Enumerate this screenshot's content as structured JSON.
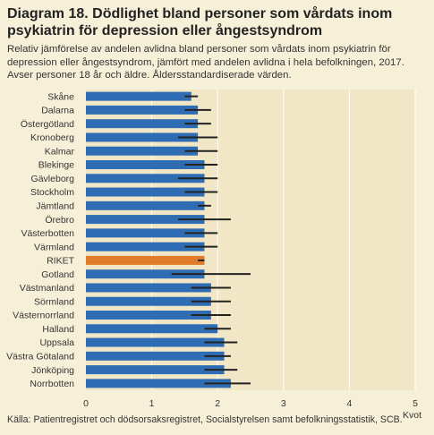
{
  "title": "Diagram 18. Dödlighet bland personer som vårdats inom psykiatrin för depression eller ångestsyndrom",
  "subtitle": "Relativ jämförelse av andelen avlidna bland personer som vårdats inom psykiatrin för depression eller ångestsyndrom, jämfört med andelen avlidna i hela befolkningen, 2017. Avser personer 18 år och äldre. Åldersstandardiserade värden.",
  "source": "Källa: Patientregistret och dödsorsaksregistret, Socialstyrelsen samt befolkningsstatistik, SCB.",
  "colors": {
    "bar": "#2e6db4",
    "highlight": "#e07b2a",
    "errorbar": "#222222",
    "grid": "#ffffff",
    "plot_bg": "#f1e7c7",
    "page_bg": "#f7f0d9"
  },
  "chart_data": {
    "type": "bar",
    "orientation": "horizontal",
    "xlabel": "Kvot",
    "xlim": [
      0,
      5
    ],
    "xticks": [
      0,
      1,
      2,
      3,
      4,
      5
    ],
    "grid": true,
    "highlight_category": "RIKET",
    "categories": [
      "Skåne",
      "Dalarna",
      "Östergötland",
      "Kronoberg",
      "Kalmar",
      "Blekinge",
      "Gävleborg",
      "Stockholm",
      "Jämtland",
      "Örebro",
      "Västerbotten",
      "Värmland",
      "RIKET",
      "Gotland",
      "Västmanland",
      "Sörmland",
      "Västernorrland",
      "Halland",
      "Uppsala",
      "Västra Götaland",
      "Jönköping",
      "Norrbotten"
    ],
    "values": [
      1.6,
      1.7,
      1.7,
      1.7,
      1.7,
      1.8,
      1.8,
      1.8,
      1.8,
      1.8,
      1.8,
      1.8,
      1.8,
      1.8,
      1.9,
      1.9,
      1.9,
      2.0,
      2.1,
      2.1,
      2.1,
      2.2
    ],
    "ci_low": [
      1.5,
      1.5,
      1.5,
      1.4,
      1.5,
      1.5,
      1.4,
      1.5,
      1.7,
      1.4,
      1.5,
      1.5,
      1.7,
      1.3,
      1.6,
      1.6,
      1.6,
      1.8,
      1.8,
      1.8,
      1.8,
      1.8
    ],
    "ci_high": [
      1.7,
      1.9,
      1.9,
      2.0,
      2.0,
      2.0,
      2.0,
      2.0,
      1.9,
      2.2,
      2.0,
      2.0,
      1.8,
      2.5,
      2.2,
      2.2,
      2.2,
      2.2,
      2.3,
      2.2,
      2.3,
      2.5
    ]
  }
}
